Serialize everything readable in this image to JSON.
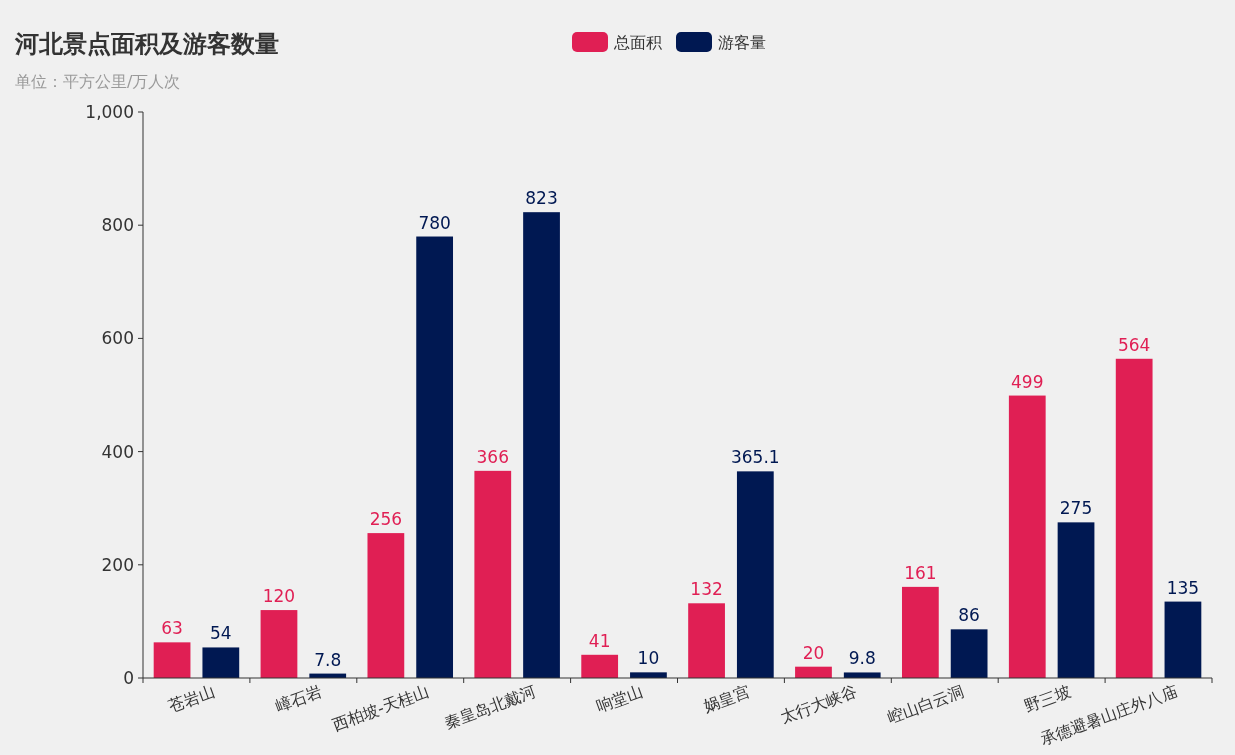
{
  "chart_data": {
    "type": "bar",
    "title": "河北景点面积及游客数量",
    "subtitle": "单位：平方公里/万人次",
    "categories": [
      "苍岩山",
      "嶂石岩",
      "西柏坡-天桂山",
      "秦皇岛北戴河",
      "响堂山",
      "娲皇宫",
      "太行大峡谷",
      "崆山白云洞",
      "野三坡",
      "承德避暑山庄外八庙"
    ],
    "series": [
      {
        "name": "总面积",
        "color": "#e01f54",
        "values": [
          63,
          120,
          256,
          366,
          41,
          132,
          20,
          161,
          499,
          564
        ]
      },
      {
        "name": "游客量",
        "color": "#001852",
        "values": [
          54,
          7.8,
          780,
          823,
          10,
          365.1,
          9.8,
          86,
          275,
          135
        ]
      }
    ],
    "ylim": [
      0,
      1000
    ],
    "yticks": [
      0,
      200,
      400,
      600,
      800,
      {
        "value": 1000,
        "label": "1,000"
      }
    ],
    "data_labels": true,
    "legend": "top",
    "grid": false
  }
}
